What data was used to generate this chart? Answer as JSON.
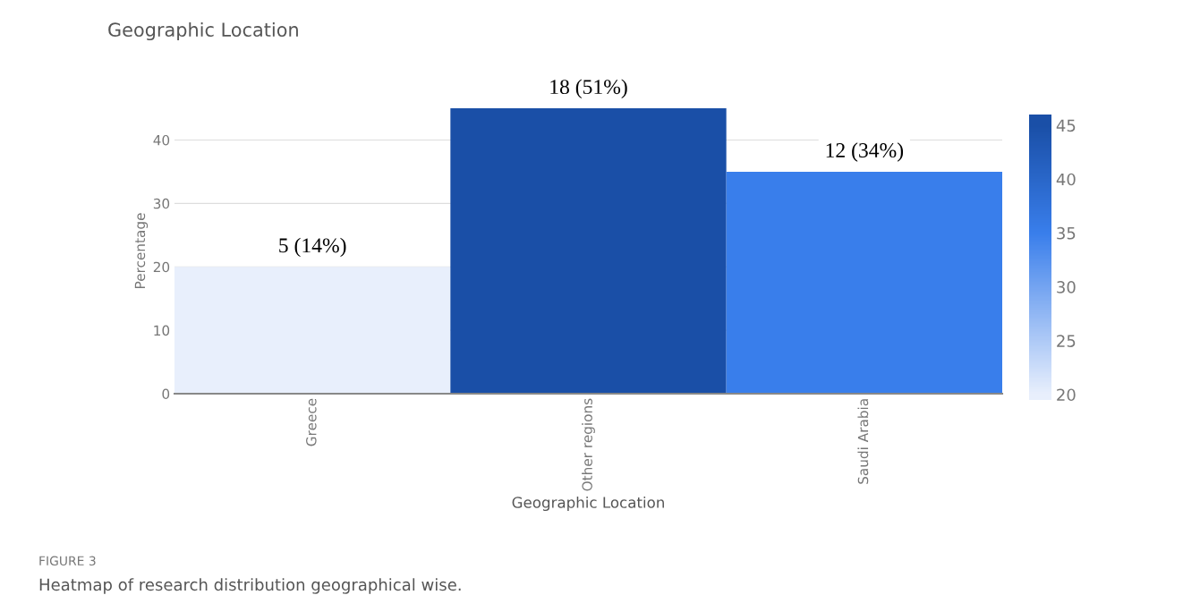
{
  "chart_data": {
    "type": "bar",
    "title": "Geographic Location",
    "xlabel": "Geographic Location",
    "ylabel": "Percentage",
    "categories": [
      "Greece",
      "Other regions",
      "Saudi Arabia"
    ],
    "values": [
      20,
      45,
      35
    ],
    "colors": [
      "#e8effc",
      "#1a4fa7",
      "#397eeb"
    ],
    "ylim": [
      0,
      45
    ],
    "yticks": [
      0,
      10,
      20,
      30,
      40
    ],
    "clim": [
      19.5,
      46
    ],
    "cticks": [
      20,
      25,
      30,
      35,
      40,
      45
    ],
    "grid": "y",
    "legend": false,
    "annotations": [
      {
        "text": "5 (14%)",
        "x": "Greece",
        "y": 20
      },
      {
        "text": "18 (51%)",
        "x": "Other regions",
        "y": 45
      },
      {
        "text": "12 (34%)",
        "x": "Saudi Arabia",
        "y": 35
      },
      "FIGURE 3",
      "Heatmap of research distribution geographical wise."
    ]
  }
}
